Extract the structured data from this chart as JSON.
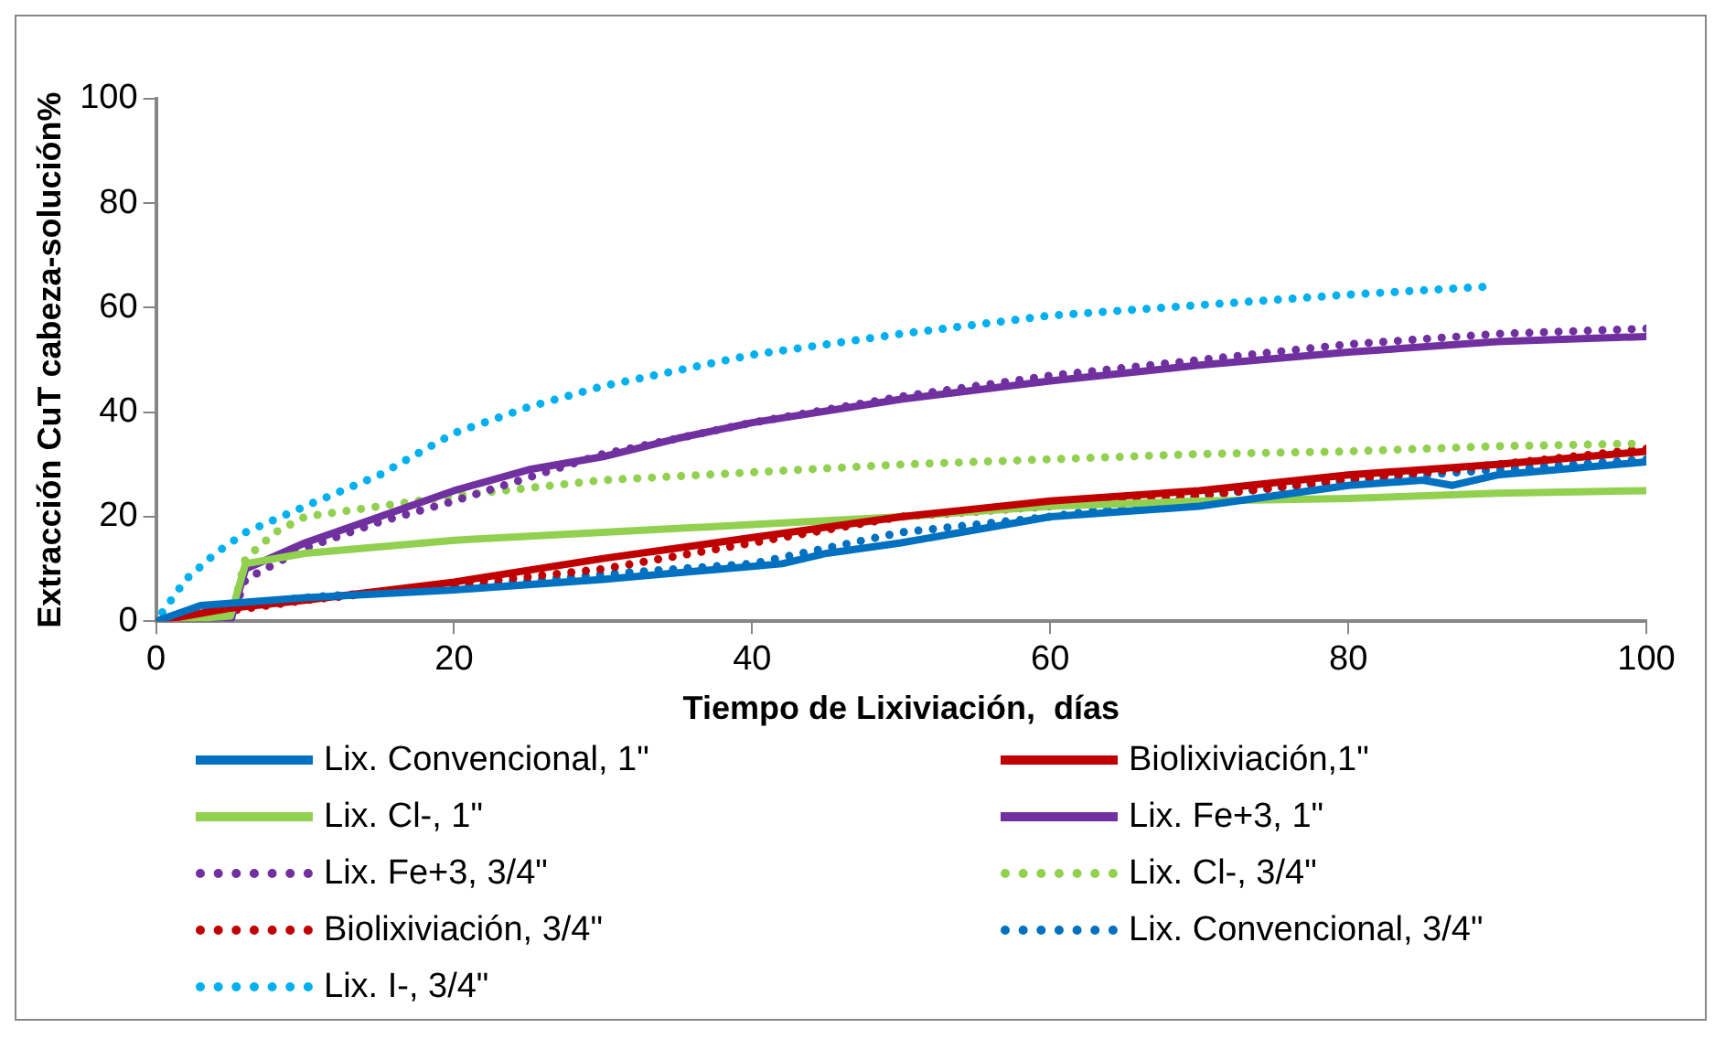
{
  "chart_data": {
    "type": "line",
    "xlabel": "Tiempo de Lixiviación,  días",
    "ylabel": "Extracción CuT cabeza-solución%",
    "xlim": [
      0,
      100
    ],
    "xticks": [
      0,
      20,
      40,
      60,
      80,
      100
    ],
    "ylim": [
      0,
      100
    ],
    "yticks": [
      0,
      20,
      40,
      60,
      80,
      100
    ],
    "grid": false,
    "legend": "bottom",
    "marker": "none",
    "series": [
      {
        "name": "Lix. Convencional, 1\"",
        "color": "#0070c0",
        "line_style": "solid",
        "x": [
          0,
          3,
          10,
          20,
          30,
          40,
          42,
          45,
          50,
          60,
          70,
          80,
          85,
          87,
          90,
          100
        ],
        "values": [
          0,
          3,
          4.5,
          6,
          8,
          10.5,
          11,
          13,
          15,
          20,
          22,
          26,
          27,
          26,
          28,
          30.5
        ]
      },
      {
        "name": "Biolixiviación,1\"",
        "color": "#c00000",
        "line_style": "solid",
        "x": [
          0,
          5,
          10,
          20,
          30,
          35,
          40,
          45,
          50,
          55,
          60,
          70,
          80,
          90,
          100
        ],
        "values": [
          0,
          2.5,
          4,
          7.5,
          12,
          14,
          16,
          18,
          20,
          21.5,
          23,
          25,
          28,
          30,
          32.5
        ]
      },
      {
        "name": "Lix. Cl-, 1\"",
        "color": "#92d050",
        "line_style": "solid",
        "x": [
          0,
          5,
          6,
          10,
          20,
          30,
          40,
          50,
          60,
          70,
          80,
          90,
          100
        ],
        "values": [
          0,
          1,
          11,
          13,
          15.5,
          17,
          18.5,
          20,
          22,
          23,
          23.5,
          24.5,
          25
        ]
      },
      {
        "name": "Lix. Fe+3, 1\"",
        "color": "#7030a0",
        "line_style": "solid",
        "x": [
          0,
          5,
          6,
          10,
          15,
          20,
          25,
          30,
          35,
          40,
          50,
          60,
          70,
          80,
          90,
          100
        ],
        "values": [
          0,
          0,
          10,
          15,
          20,
          25,
          29,
          31.5,
          35,
          38,
          42.5,
          46,
          49,
          51.5,
          53.5,
          54.5
        ]
      },
      {
        "name": "Lix. Fe+3, 3/4\"",
        "color": "#7030a0",
        "line_style": "dotted",
        "x": [
          0,
          5,
          6,
          10,
          15,
          20,
          30,
          40,
          50,
          60,
          70,
          80,
          90,
          100
        ],
        "values": [
          0,
          0,
          8,
          14,
          19,
          23,
          32,
          38,
          43,
          47,
          50,
          53,
          55,
          56
        ]
      },
      {
        "name": "Lix. Cl-, 3/4\"",
        "color": "#92d050",
        "line_style": "dotted",
        "x": [
          0,
          5,
          6,
          8,
          10,
          15,
          20,
          30,
          40,
          50,
          60,
          70,
          80,
          90,
          100
        ],
        "values": [
          0,
          0,
          12,
          17,
          20,
          22,
          24,
          27,
          28.5,
          30,
          31,
          32,
          32.5,
          33.5,
          34
        ]
      },
      {
        "name": "Biolixiviación, 3/4\"",
        "color": "#c00000",
        "line_style": "dotted",
        "x": [
          0,
          5,
          10,
          20,
          30,
          40,
          50,
          60,
          70,
          80,
          90,
          100
        ],
        "values": [
          0,
          2,
          4,
          7,
          10,
          15,
          20,
          22,
          24,
          27,
          30,
          33
        ]
      },
      {
        "name": "Lix. Convencional, 3/4\"",
        "color": "#0070c0",
        "line_style": "dotted",
        "x": [
          0,
          5,
          10,
          20,
          30,
          40,
          50,
          60,
          70,
          80,
          90,
          100
        ],
        "values": [
          0,
          3,
          4.5,
          6.5,
          9,
          11,
          17,
          20,
          24,
          27,
          29,
          31
        ]
      },
      {
        "name": "Lix. I-, 3/4\"",
        "color": "#00b0f0",
        "line_style": "dotted",
        "x": [
          0,
          2,
          4,
          6,
          10,
          15,
          20,
          25,
          30,
          40,
          50,
          60,
          70,
          80,
          89
        ],
        "values": [
          0,
          8,
          13,
          17,
          22,
          28,
          36,
          41,
          45,
          51,
          55,
          58.5,
          60.5,
          62.5,
          64
        ]
      }
    ]
  }
}
